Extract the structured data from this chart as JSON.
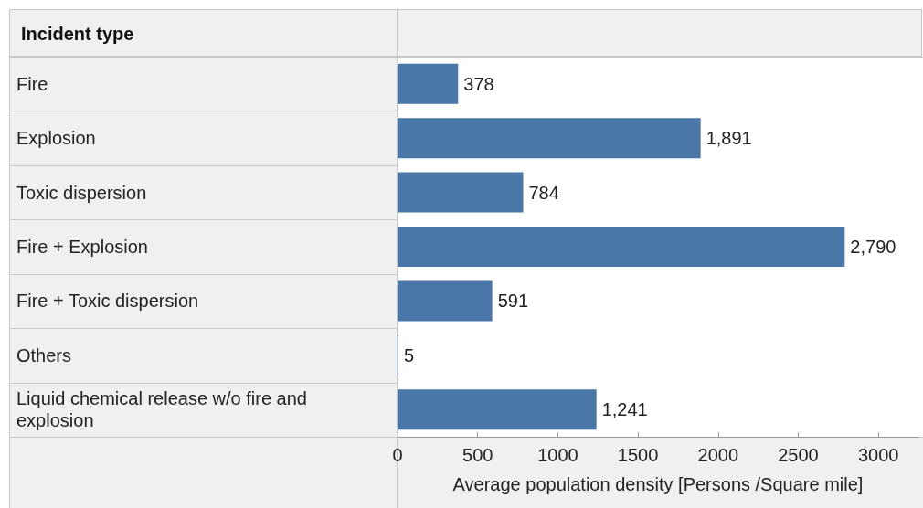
{
  "chart_data": {
    "type": "bar",
    "orientation": "horizontal",
    "ylabel": "Incident type",
    "xlabel": "Average population density [Persons /Square mile]",
    "categories": [
      "Fire",
      "Explosion",
      "Toxic dispersion",
      "Fire + Explosion",
      "Fire + Toxic dispersion",
      "Others",
      "Liquid chemical release w/o fire and explosion"
    ],
    "values": [
      378,
      1891,
      784,
      2790,
      591,
      5,
      1241
    ],
    "color": "#4a76a8",
    "xlim": [
      0,
      3250
    ],
    "xticks": [
      0,
      500,
      1000,
      1500,
      2000,
      2500,
      3000
    ],
    "value_labels": [
      "378",
      "1,891",
      "784",
      "2,790",
      "591",
      "5",
      "1,241"
    ],
    "grid": false
  }
}
